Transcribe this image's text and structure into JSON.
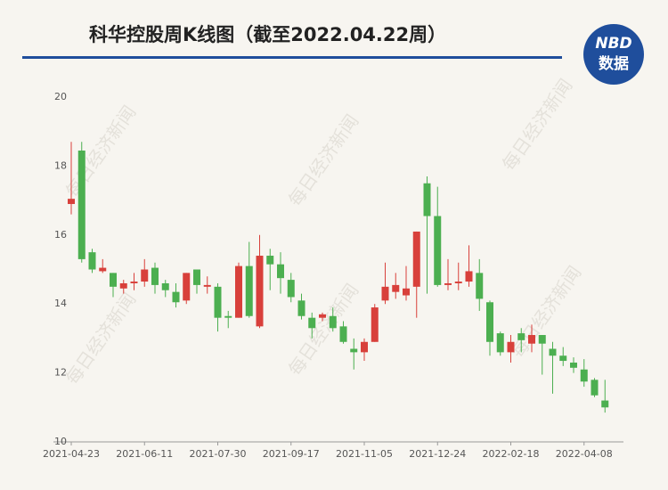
{
  "chart_data": {
    "type": "candlestick",
    "title": "科华控股周K线图（截至2022.04.22周）",
    "logo": {
      "top": "NBD",
      "bottom": "数据"
    },
    "watermark": "每日经济新闻",
    "up_color": "#d8403b",
    "down_color": "#4caf50",
    "categories": [
      "2021-04-23",
      null,
      null,
      null,
      null,
      null,
      null,
      "2021-06-11",
      null,
      null,
      null,
      null,
      null,
      null,
      "2021-07-30",
      null,
      null,
      null,
      null,
      null,
      null,
      "2021-09-17",
      null,
      null,
      null,
      null,
      null,
      null,
      "2021-11-05",
      null,
      null,
      null,
      null,
      null,
      null,
      "2021-12-24",
      null,
      null,
      null,
      null,
      null,
      null,
      "2022-02-18",
      null,
      null,
      null,
      null,
      null,
      null,
      "2022-04-08",
      null,
      null
    ],
    "open": [
      16.9,
      18.45,
      15.5,
      14.95,
      14.9,
      14.45,
      14.6,
      14.65,
      15.05,
      14.6,
      14.35,
      14.1,
      15.0,
      14.5,
      14.5,
      13.65,
      13.6,
      15.1,
      13.35,
      15.4,
      15.15,
      14.7,
      14.1,
      13.6,
      13.6,
      13.65,
      13.35,
      12.7,
      12.6,
      12.9,
      14.1,
      14.35,
      14.25,
      14.5,
      17.5,
      16.55,
      14.55,
      14.6,
      14.65,
      14.9,
      14.05,
      13.15,
      12.6,
      13.15,
      12.85,
      13.1,
      12.7,
      12.5,
      12.3,
      12.1,
      11.8,
      11.2
    ],
    "high": [
      18.7,
      18.7,
      15.6,
      15.3,
      14.9,
      14.7,
      14.9,
      15.3,
      15.2,
      14.7,
      14.6,
      14.9,
      15.0,
      14.8,
      14.6,
      13.8,
      15.2,
      15.8,
      16.0,
      15.6,
      15.5,
      14.9,
      14.3,
      13.75,
      13.75,
      13.9,
      13.5,
      13.0,
      13.0,
      14.0,
      15.2,
      14.9,
      15.1,
      16.1,
      17.7,
      17.4,
      15.3,
      15.2,
      15.7,
      15.3,
      14.1,
      13.2,
      13.1,
      13.3,
      13.4,
      13.1,
      12.9,
      12.75,
      12.45,
      12.4,
      11.85,
      11.8
    ],
    "low": [
      16.6,
      15.2,
      14.9,
      14.9,
      14.2,
      14.3,
      14.4,
      14.5,
      14.3,
      14.2,
      13.9,
      14.0,
      14.3,
      14.3,
      13.2,
      13.3,
      13.6,
      13.6,
      13.3,
      14.4,
      14.3,
      14.05,
      13.55,
      13.0,
      13.5,
      13.2,
      12.85,
      12.1,
      12.35,
      12.9,
      14.0,
      14.15,
      14.1,
      13.6,
      14.3,
      14.5,
      14.4,
      14.4,
      14.5,
      13.8,
      12.5,
      12.5,
      12.3,
      12.6,
      12.6,
      11.95,
      11.4,
      12.2,
      12.0,
      11.6,
      11.3,
      10.85
    ],
    "close": [
      17.05,
      15.3,
      15.0,
      15.05,
      14.5,
      14.6,
      14.65,
      15.0,
      14.55,
      14.4,
      14.05,
      14.9,
      14.55,
      14.55,
      13.6,
      13.6,
      15.1,
      13.65,
      15.4,
      15.15,
      14.75,
      14.2,
      13.65,
      13.3,
      13.7,
      13.3,
      12.9,
      12.6,
      12.9,
      13.9,
      14.5,
      14.55,
      14.45,
      16.1,
      16.55,
      14.55,
      14.6,
      14.65,
      14.95,
      14.15,
      12.9,
      12.6,
      12.9,
      12.95,
      13.1,
      12.85,
      12.5,
      12.35,
      12.15,
      11.75,
      11.35,
      11.0
    ],
    "ylim": [
      10,
      20
    ],
    "yticks": [
      10,
      12,
      14,
      16,
      18,
      20
    ]
  }
}
